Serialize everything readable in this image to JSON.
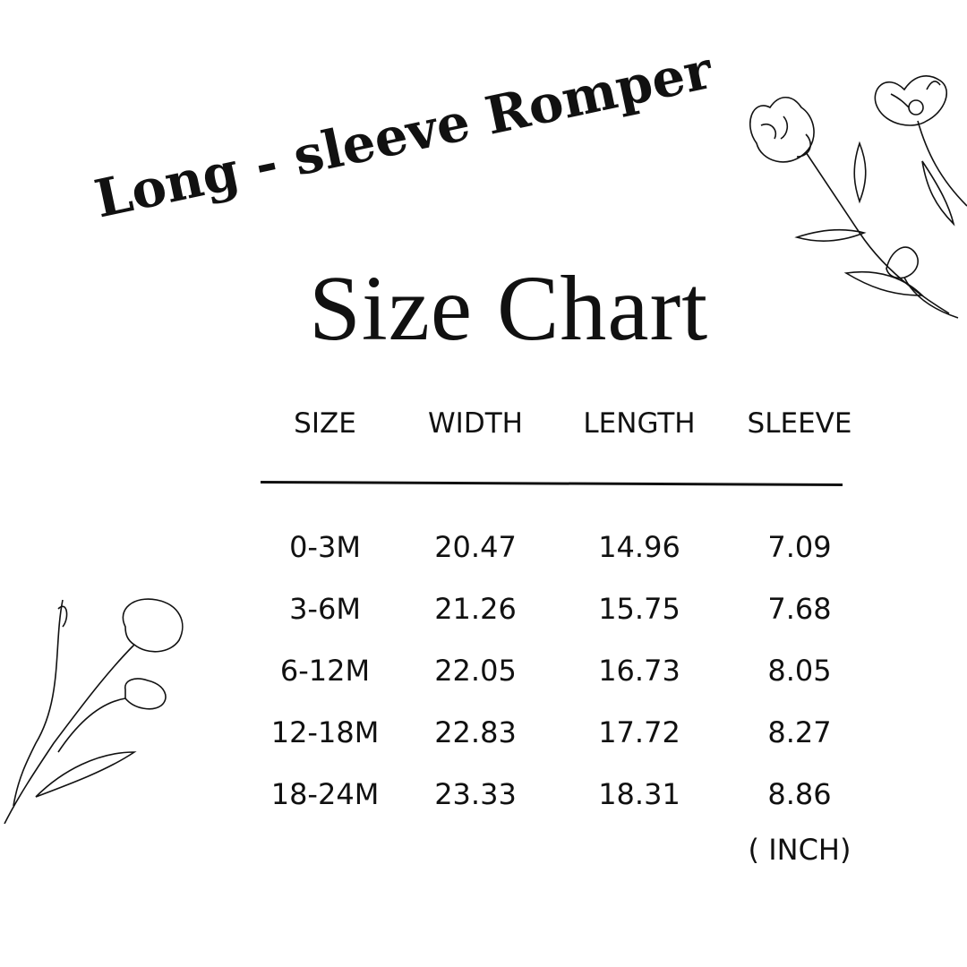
{
  "title": "Long - sleeve Romper",
  "subtitle": "Size Chart",
  "table": {
    "headers": [
      "SIZE",
      "WIDTH",
      "LENGTH",
      "SLEEVE"
    ],
    "rows": [
      [
        "0-3M",
        "20.47",
        "14.96",
        "7.09"
      ],
      [
        "3-6M",
        "21.26",
        "15.75",
        "7.68"
      ],
      [
        "6-12M",
        "22.05",
        "16.73",
        "8.05"
      ],
      [
        "12-18M",
        "22.83",
        "17.72",
        "8.27"
      ],
      [
        "18-24M",
        "23.33",
        "18.31",
        "8.86"
      ]
    ],
    "unit": "( INCH)"
  },
  "decorations": [
    "flowers-line-art-top-right",
    "tulips-line-art-bottom-left"
  ]
}
